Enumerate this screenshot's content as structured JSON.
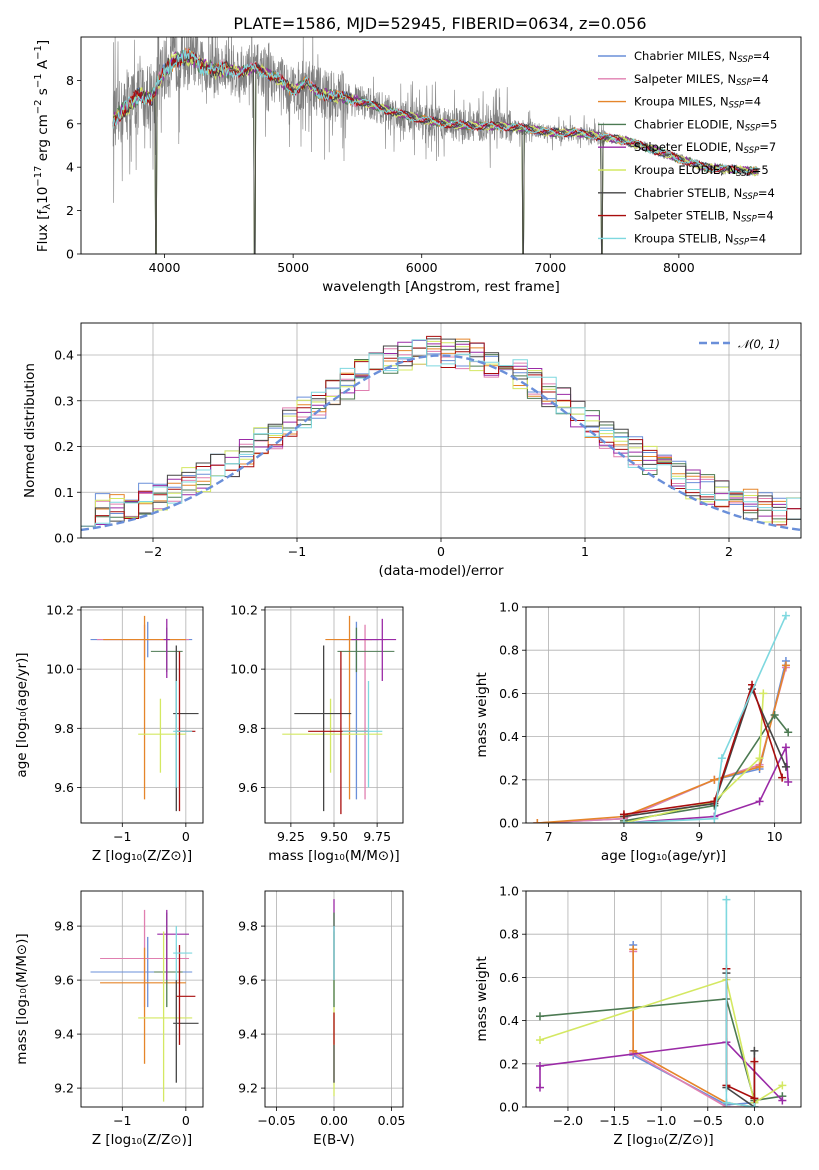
{
  "figure": {
    "title": "PLATE=1586, MJD=52945, FIBERID=0634, z=0.056",
    "colors": {
      "Chabrier MILES": "#6a8fd9",
      "Salpeter MILES": "#e07fb0",
      "Kroupa MILES": "#e5852a",
      "Chabrier ELODIE": "#4c7a52",
      "Salpeter ELODIE": "#9a2aa6",
      "Kroupa ELODIE": "#d4e862",
      "Chabrier STELIB": "#454545",
      "Salpeter STELIB": "#a80d0d",
      "Kroupa STELIB": "#7ed8df",
      "data": "#7f7f7f",
      "normal": "#6a8fd9"
    }
  },
  "chart_data": [
    {
      "id": "spectrum",
      "type": "line",
      "xlabel": "wavelength [Angstrom, rest frame]",
      "ylabel": "Flux [f",
      "xlim": [
        3350,
        8950
      ],
      "ylim": [
        0,
        10
      ],
      "xticks": [
        4000,
        5000,
        6000,
        7000,
        8000
      ],
      "yticks": [
        0,
        2,
        4,
        6,
        8
      ],
      "grid": false,
      "legend_position": "right",
      "legend": [
        {
          "ssp": "Chabrier MILES",
          "n": "4"
        },
        {
          "ssp": "Salpeter MILES",
          "n": "4"
        },
        {
          "ssp": "Kroupa MILES",
          "n": "4"
        },
        {
          "ssp": "Chabrier ELODIE",
          "n": "5"
        },
        {
          "ssp": "Salpeter ELODIE",
          "n": "7"
        },
        {
          "ssp": "Kroupa ELODIE",
          "n": "5"
        },
        {
          "ssp": "Chabrier STELIB",
          "n": "4"
        },
        {
          "ssp": "Salpeter STELIB",
          "n": "4"
        },
        {
          "ssp": "Kroupa STELIB",
          "n": "4"
        }
      ],
      "continuum": [
        [
          3600,
          6.2
        ],
        [
          3700,
          6.7
        ],
        [
          3800,
          7.3
        ],
        [
          3900,
          7.2
        ],
        [
          4000,
          8.5
        ],
        [
          4100,
          9.0
        ],
        [
          4200,
          9.1
        ],
        [
          4300,
          8.6
        ],
        [
          4400,
          8.5
        ],
        [
          4500,
          8.5
        ],
        [
          4600,
          8.4
        ],
        [
          4700,
          8.6
        ],
        [
          4800,
          8.3
        ],
        [
          4900,
          8.0
        ],
        [
          5000,
          7.5
        ],
        [
          5100,
          7.9
        ],
        [
          5200,
          7.4
        ],
        [
          5400,
          7.2
        ],
        [
          5600,
          6.9
        ],
        [
          5800,
          6.5
        ],
        [
          6000,
          6.2
        ],
        [
          6200,
          6.0
        ],
        [
          6400,
          5.9
        ],
        [
          6600,
          5.9
        ],
        [
          6800,
          5.8
        ],
        [
          7000,
          5.6
        ],
        [
          7200,
          5.6
        ],
        [
          7400,
          5.4
        ],
        [
          7600,
          5.2
        ],
        [
          7800,
          4.8
        ],
        [
          8000,
          4.4
        ],
        [
          8200,
          4.0
        ],
        [
          8400,
          3.9
        ],
        [
          8620,
          3.8
        ]
      ],
      "dips": [
        [
          3933,
          0.0
        ],
        [
          4700,
          0.0
        ],
        [
          6790,
          0.0
        ],
        [
          7400,
          0.0
        ]
      ]
    },
    {
      "id": "residuals",
      "type": "histogram",
      "xlabel": "(data-model)/error",
      "ylabel": "Normed distribution",
      "xlim": [
        -2.5,
        2.5
      ],
      "ylim": [
        0,
        0.47
      ],
      "xticks": [
        -2,
        -1,
        0,
        1,
        2
      ],
      "yticks": [
        0.0,
        0.1,
        0.2,
        0.3,
        0.4
      ],
      "grid": true,
      "bin_width": 0.1,
      "legend_label": "𝒩(0, 1)",
      "legend_position": "top-right"
    },
    {
      "id": "age-vs-z",
      "type": "scatter",
      "xlabel": "Z [log₁₀(Z/Z⊙)]",
      "ylabel": "age  [log₁₀(age/yr)]",
      "xlim": [
        -1.65,
        0.27
      ],
      "ylim": [
        9.48,
        10.21
      ],
      "xticks": [
        -1,
        0
      ],
      "yticks": [
        9.6,
        9.8,
        10.0,
        10.2
      ],
      "grid": true,
      "points": [
        {
          "ssp": "Chabrier MILES",
          "x": -0.6,
          "y": 10.1,
          "xlo": -1.5,
          "xhi": 0.1,
          "ylo": 10.04,
          "yhi": 10.16
        },
        {
          "ssp": "Salpeter MILES",
          "x": -0.65,
          "y": 10.1,
          "xlo": -1.4,
          "xhi": 0.05,
          "ylo": 10.03,
          "yhi": 10.15
        },
        {
          "ssp": "Kroupa MILES",
          "x": -0.65,
          "y": 10.1,
          "xlo": -1.3,
          "xhi": 0.0,
          "ylo": 9.56,
          "yhi": 10.18
        },
        {
          "ssp": "Chabrier ELODIE",
          "x": -0.3,
          "y": 10.06,
          "xlo": -0.55,
          "xhi": -0.05,
          "ylo": 9.99,
          "yhi": 10.14
        },
        {
          "ssp": "Salpeter ELODIE",
          "x": -0.3,
          "y": 10.1,
          "xlo": -0.35,
          "xhi": -0.25,
          "ylo": 9.97,
          "yhi": 10.17
        },
        {
          "ssp": "Kroupa ELODIE",
          "x": -0.4,
          "y": 9.78,
          "xlo": -0.75,
          "xhi": 0.0,
          "ylo": 9.65,
          "yhi": 9.9
        },
        {
          "ssp": "Chabrier STELIB",
          "x": -0.15,
          "y": 9.85,
          "xlo": -0.2,
          "xhi": 0.2,
          "ylo": 9.52,
          "yhi": 10.08
        },
        {
          "ssp": "Salpeter STELIB",
          "x": -0.1,
          "y": 9.79,
          "xlo": -0.15,
          "xhi": 0.15,
          "ylo": 9.52,
          "yhi": 10.06
        },
        {
          "ssp": "Kroupa STELIB",
          "x": -0.15,
          "y": 9.79,
          "xlo": -0.2,
          "xhi": 0.1,
          "ylo": 9.6,
          "yhi": 9.96
        }
      ]
    },
    {
      "id": "age-vs-mass",
      "type": "scatter",
      "xlabel": "mass [log₁₀(M/M⊙)]",
      "ylabel": "",
      "xlim": [
        9.1,
        9.9
      ],
      "ylim": [
        9.48,
        10.21
      ],
      "xticks": [
        9.25,
        9.5,
        9.75
      ],
      "yticks": [
        9.6,
        9.8,
        10.0,
        10.2
      ],
      "grid": true,
      "points": [
        {
          "ssp": "Chabrier MILES",
          "x": 9.63,
          "y": 10.1,
          "xlo": 9.5,
          "xhi": 9.76,
          "ylo": 9.56,
          "yhi": 10.16
        },
        {
          "ssp": "Salpeter MILES",
          "x": 9.68,
          "y": 10.1,
          "xlo": 9.55,
          "xhi": 9.8,
          "ylo": 9.56,
          "yhi": 10.15
        },
        {
          "ssp": "Kroupa MILES",
          "x": 9.59,
          "y": 10.1,
          "xlo": 9.45,
          "xhi": 9.72,
          "ylo": 9.56,
          "yhi": 10.18
        },
        {
          "ssp": "Chabrier ELODIE",
          "x": 9.63,
          "y": 10.06,
          "xlo": 9.52,
          "xhi": 9.85,
          "ylo": 9.99,
          "yhi": 10.14
        },
        {
          "ssp": "Salpeter ELODIE",
          "x": 9.78,
          "y": 10.1,
          "xlo": 9.6,
          "xhi": 9.86,
          "ylo": 9.96,
          "yhi": 10.17
        },
        {
          "ssp": "Kroupa ELODIE",
          "x": 9.48,
          "y": 9.78,
          "xlo": 9.2,
          "xhi": 9.78,
          "ylo": 9.65,
          "yhi": 9.9
        },
        {
          "ssp": "Chabrier STELIB",
          "x": 9.44,
          "y": 9.85,
          "xlo": 9.27,
          "xhi": 9.6,
          "ylo": 9.52,
          "yhi": 10.08
        },
        {
          "ssp": "Salpeter STELIB",
          "x": 9.54,
          "y": 9.79,
          "xlo": 9.35,
          "xhi": 9.7,
          "ylo": 9.51,
          "yhi": 10.06
        },
        {
          "ssp": "Kroupa STELIB",
          "x": 9.7,
          "y": 9.79,
          "xlo": 9.55,
          "xhi": 9.78,
          "ylo": 9.6,
          "yhi": 9.96
        }
      ]
    },
    {
      "id": "weight-vs-age",
      "type": "line",
      "xlabel": "age  [log₁₀(age/yr)]",
      "ylabel": "mass weight",
      "xlim": [
        6.7,
        10.35
      ],
      "ylim": [
        0,
        1
      ],
      "xticks": [
        7,
        8,
        9,
        10
      ],
      "yticks": [
        0.0,
        0.2,
        0.4,
        0.6,
        0.8,
        1.0
      ],
      "grid": true,
      "series": [
        {
          "ssp": "Chabrier MILES",
          "x": [
            6.85,
            8.0,
            9.2,
            9.8,
            10.15
          ],
          "y": [
            0.0,
            0.02,
            0.2,
            0.25,
            0.75
          ]
        },
        {
          "ssp": "Salpeter MILES",
          "x": [
            6.85,
            8.0,
            9.2,
            9.8,
            10.15
          ],
          "y": [
            0.0,
            0.02,
            0.2,
            0.27,
            0.72
          ]
        },
        {
          "ssp": "Kroupa MILES",
          "x": [
            6.85,
            8.0,
            9.2,
            9.8,
            10.15
          ],
          "y": [
            0.0,
            0.03,
            0.2,
            0.26,
            0.73
          ]
        },
        {
          "ssp": "Chabrier ELODIE",
          "x": [
            8.0,
            9.2,
            10.0,
            10.18
          ],
          "y": [
            0.01,
            0.08,
            0.5,
            0.42
          ]
        },
        {
          "ssp": "Salpeter ELODIE",
          "x": [
            8.0,
            9.2,
            9.8,
            10.15,
            10.18
          ],
          "y": [
            0.0,
            0.03,
            0.1,
            0.35,
            0.19
          ]
        },
        {
          "ssp": "Kroupa ELODIE",
          "x": [
            8.0,
            9.2,
            9.8,
            9.85
          ],
          "y": [
            0.0,
            0.1,
            0.3,
            0.6
          ]
        },
        {
          "ssp": "Chabrier STELIB",
          "x": [
            8.0,
            9.2,
            9.7,
            10.15
          ],
          "y": [
            0.03,
            0.09,
            0.62,
            0.26
          ]
        },
        {
          "ssp": "Salpeter STELIB",
          "x": [
            8.0,
            9.2,
            9.7,
            10.1
          ],
          "y": [
            0.04,
            0.1,
            0.64,
            0.21
          ]
        },
        {
          "ssp": "Kroupa STELIB",
          "x": [
            8.0,
            9.2,
            9.3,
            10.15
          ],
          "y": [
            0.0,
            0.02,
            0.3,
            0.96
          ]
        }
      ]
    },
    {
      "id": "mass-vs-z",
      "type": "scatter",
      "xlabel": "Z [log₁₀(Z/Z⊙)]",
      "ylabel": "mass [log₁₀(M/M⊙)]",
      "xlim": [
        -1.65,
        0.27
      ],
      "ylim": [
        9.13,
        9.93
      ],
      "xticks": [
        -1,
        0
      ],
      "yticks": [
        9.2,
        9.4,
        9.6,
        9.8
      ],
      "grid": true,
      "points": [
        {
          "ssp": "Chabrier MILES",
          "x": -0.6,
          "y": 9.63,
          "xlo": -1.5,
          "xhi": 0.1,
          "ylo": 9.5,
          "yhi": 9.76
        },
        {
          "ssp": "Salpeter MILES",
          "x": -0.65,
          "y": 9.68,
          "xlo": -1.35,
          "xhi": 0.05,
          "ylo": 9.5,
          "yhi": 9.86
        },
        {
          "ssp": "Kroupa MILES",
          "x": -0.65,
          "y": 9.59,
          "xlo": -1.35,
          "xhi": 0.0,
          "ylo": 9.29,
          "yhi": 9.72
        },
        {
          "ssp": "Chabrier ELODIE",
          "x": -0.3,
          "y": 9.63,
          "xlo": -0.5,
          "xhi": -0.05,
          "ylo": 9.5,
          "yhi": 9.85
        },
        {
          "ssp": "Salpeter ELODIE",
          "x": -0.3,
          "y": 9.77,
          "xlo": -0.45,
          "xhi": 0.05,
          "ylo": 9.6,
          "yhi": 9.86
        },
        {
          "ssp": "Kroupa ELODIE",
          "x": -0.35,
          "y": 9.46,
          "xlo": -0.75,
          "xhi": 0.1,
          "ylo": 9.15,
          "yhi": 9.78
        },
        {
          "ssp": "Chabrier STELIB",
          "x": -0.15,
          "y": 9.44,
          "xlo": -0.2,
          "xhi": 0.2,
          "ylo": 9.22,
          "yhi": 9.6
        },
        {
          "ssp": "Salpeter STELIB",
          "x": -0.1,
          "y": 9.54,
          "xlo": -0.15,
          "xhi": 0.15,
          "ylo": 9.36,
          "yhi": 9.73
        },
        {
          "ssp": "Kroupa STELIB",
          "x": -0.15,
          "y": 9.7,
          "xlo": -0.2,
          "xhi": 0.1,
          "ylo": 9.6,
          "yhi": 9.8
        }
      ]
    },
    {
      "id": "mass-vs-ebv",
      "type": "scatter",
      "xlabel": "E(B-V)",
      "ylabel": "",
      "xlim": [
        -0.06,
        0.06
      ],
      "ylim": [
        9.13,
        9.93
      ],
      "xticks": [
        -0.05,
        0.0,
        0.05
      ],
      "yticks": [
        9.2,
        9.4,
        9.6,
        9.8
      ],
      "grid": true,
      "points": [
        {
          "ssp": "Kroupa ELODIE",
          "x": 0.0,
          "y": 9.46,
          "xlo": 0.0,
          "xhi": 0.0,
          "ylo": 9.17,
          "yhi": 9.78
        },
        {
          "ssp": "Salpeter ELODIE",
          "x": 0.0,
          "y": 9.77,
          "xlo": 0.0,
          "xhi": 0.0,
          "ylo": 9.6,
          "yhi": 9.9
        },
        {
          "ssp": "Chabrier ELODIE",
          "x": 0.0,
          "y": 9.63,
          "xlo": 0.0,
          "xhi": 0.0,
          "ylo": 9.5,
          "yhi": 9.85
        },
        {
          "ssp": "Salpeter STELIB",
          "x": 0.0,
          "y": 9.41,
          "xlo": 0.0,
          "xhi": 0.0,
          "ylo": 9.36,
          "yhi": 9.48
        },
        {
          "ssp": "Chabrier STELIB",
          "x": 0.0,
          "y": 9.28,
          "xlo": 0.0,
          "xhi": 0.0,
          "ylo": 9.22,
          "yhi": 9.36
        },
        {
          "ssp": "Kroupa STELIB",
          "x": 0.0,
          "y": 9.7,
          "xlo": 0.0,
          "xhi": 0.0,
          "ylo": 9.6,
          "yhi": 9.8
        }
      ]
    },
    {
      "id": "weight-vs-z",
      "type": "line",
      "xlabel": "Z [log₁₀(Z/Z⊙)]",
      "ylabel": "mass weight",
      "xlim": [
        -2.45,
        0.5
      ],
      "ylim": [
        0,
        1
      ],
      "xticks": [
        -2.0,
        -1.5,
        -1.0,
        -0.5,
        0.0
      ],
      "yticks": [
        0.0,
        0.2,
        0.4,
        0.6,
        0.8,
        1.0
      ],
      "grid": true,
      "series": [
        {
          "ssp": "Chabrier MILES",
          "x": [
            -1.3,
            -1.3,
            -0.3,
            0.0
          ],
          "y": [
            0.75,
            0.24,
            0.01,
            0.02
          ]
        },
        {
          "ssp": "Salpeter MILES",
          "x": [
            -1.3,
            -1.3,
            -0.3,
            0.0
          ],
          "y": [
            0.72,
            0.25,
            0.0,
            0.0
          ]
        },
        {
          "ssp": "Kroupa MILES",
          "x": [
            -1.3,
            -1.3,
            -0.3,
            0.0
          ],
          "y": [
            0.73,
            0.26,
            0.02,
            0.0
          ]
        },
        {
          "ssp": "Chabrier ELODIE",
          "x": [
            -2.3,
            -0.3,
            0.0,
            0.3
          ],
          "y": [
            0.42,
            0.5,
            0.03,
            0.05
          ]
        },
        {
          "ssp": "Salpeter ELODIE",
          "x": [
            -2.3,
            -2.3,
            -0.3,
            0.3
          ],
          "y": [
            0.09,
            0.19,
            0.3,
            0.03
          ]
        },
        {
          "ssp": "Kroupa ELODIE",
          "x": [
            -2.3,
            -0.3,
            0.0,
            0.3
          ],
          "y": [
            0.31,
            0.59,
            0.02,
            0.1
          ]
        },
        {
          "ssp": "Chabrier STELIB",
          "x": [
            -0.3,
            -0.3,
            0.0,
            0.0
          ],
          "y": [
            0.62,
            0.09,
            0.0,
            0.26
          ]
        },
        {
          "ssp": "Salpeter STELIB",
          "x": [
            -0.3,
            -0.3,
            0.0,
            0.0
          ],
          "y": [
            0.64,
            0.1,
            0.04,
            0.21
          ]
        },
        {
          "ssp": "Kroupa STELIB",
          "x": [
            -0.3,
            -0.3,
            0.0
          ],
          "y": [
            0.96,
            0.02,
            0.0
          ]
        }
      ]
    }
  ]
}
